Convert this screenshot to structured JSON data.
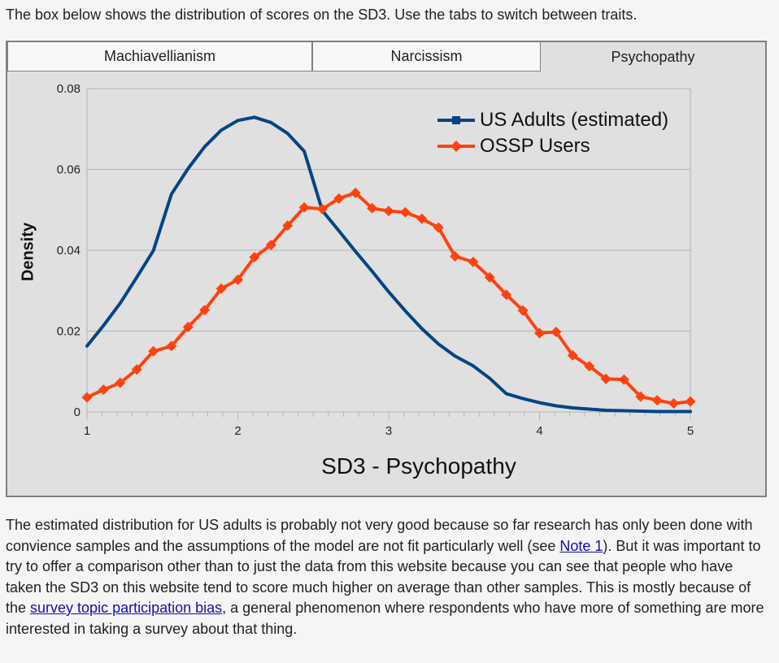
{
  "intro_text": "The box below shows the distribution of scores on the SD3. Use the tabs to switch between traits.",
  "tabs": [
    {
      "label": "Machiavellianism",
      "active": false
    },
    {
      "label": "Narcissism",
      "active": false
    },
    {
      "label": "Psychopathy",
      "active": true
    }
  ],
  "chart_data": {
    "type": "line",
    "xlabel": "SD3 - Psychopathy",
    "ylabel": "Density",
    "xlim": [
      1,
      5
    ],
    "ylim": [
      0,
      0.08
    ],
    "x_ticks": [
      "1",
      "2",
      "3",
      "4",
      "5"
    ],
    "y_ticks": [
      "0",
      "0.02",
      "0.04",
      "0.06",
      "0.08"
    ],
    "grid": true,
    "legend_position": "top-right",
    "series": [
      {
        "name": "US Adults (estimated)",
        "color": "#004586",
        "marker": "none",
        "x": [
          1.0,
          1.11,
          1.22,
          1.33,
          1.44,
          1.56,
          1.67,
          1.78,
          1.89,
          2.0,
          2.11,
          2.22,
          2.33,
          2.44,
          2.56,
          2.67,
          2.78,
          2.89,
          3.0,
          3.11,
          3.22,
          3.33,
          3.44,
          3.56,
          3.67,
          3.78,
          3.89,
          4.0,
          4.11,
          4.22,
          4.33,
          4.44,
          4.56,
          4.67,
          4.78,
          4.89,
          5.0
        ],
        "y": [
          0.0163,
          0.0214,
          0.0269,
          0.0333,
          0.0399,
          0.0539,
          0.0602,
          0.0656,
          0.0697,
          0.0721,
          0.0729,
          0.0716,
          0.0689,
          0.0645,
          0.0498,
          0.0448,
          0.0397,
          0.0348,
          0.0297,
          0.025,
          0.0206,
          0.0168,
          0.0138,
          0.0114,
          0.0083,
          0.0045,
          0.0033,
          0.0023,
          0.0015,
          0.001,
          0.0007,
          0.0004,
          0.0003,
          0.0002,
          0.0001,
          0.0001,
          0.0001
        ]
      },
      {
        "name": "OSSP Users",
        "color": "#ff420e",
        "marker": "diamond",
        "x": [
          1.0,
          1.11,
          1.22,
          1.33,
          1.44,
          1.56,
          1.67,
          1.78,
          1.89,
          2.0,
          2.11,
          2.22,
          2.33,
          2.44,
          2.56,
          2.67,
          2.78,
          2.89,
          3.0,
          3.11,
          3.22,
          3.33,
          3.44,
          3.56,
          3.67,
          3.78,
          3.89,
          4.0,
          4.11,
          4.22,
          4.33,
          4.44,
          4.56,
          4.67,
          4.78,
          4.89,
          5.0
        ],
        "y": [
          0.0036,
          0.0055,
          0.0072,
          0.0105,
          0.015,
          0.0163,
          0.021,
          0.0252,
          0.0305,
          0.0327,
          0.0383,
          0.0413,
          0.0461,
          0.0506,
          0.0502,
          0.0528,
          0.0542,
          0.0504,
          0.0497,
          0.0494,
          0.0478,
          0.0456,
          0.0385,
          0.0371,
          0.0333,
          0.029,
          0.0251,
          0.0195,
          0.0198,
          0.014,
          0.0113,
          0.0082,
          0.008,
          0.0038,
          0.0029,
          0.0021,
          0.0026
        ]
      }
    ]
  },
  "bottom_text": {
    "part1": "The estimated distribution for US adults is probably not very good because so far research has only been done with convience samples and the assumptions of the model are not fit particularly well (see ",
    "link1": "Note 1",
    "part2": "). But it was important to try to offer a comparison other than to just the data from this website because you can see that people who have taken the SD3 on this website tend to score much higher on average than other samples. This is mostly because of the ",
    "link2": "survey topic participation bias",
    "part3": ", a general phenomenon where respondents who have more of something are more interested in taking a survey about that thing."
  }
}
